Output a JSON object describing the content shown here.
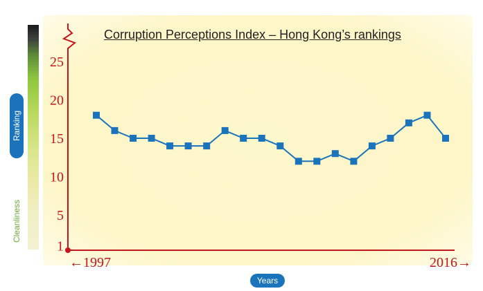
{
  "chart_data": {
    "type": "line",
    "title": "Corruption Perceptions Index – Hong Kong’s rankings",
    "xlabel": "Years",
    "ylabel": "Ranking",
    "secondary_ylabel": "Cleanliness",
    "x_start_label": "←1997",
    "x_end_label": "2016→",
    "x": [
      1997,
      1998,
      1999,
      2000,
      2001,
      2002,
      2003,
      2004,
      2005,
      2006,
      2007,
      2008,
      2009,
      2010,
      2011,
      2012,
      2013,
      2014,
      2015,
      2016
    ],
    "series": [
      {
        "values": [
          18,
          16,
          15,
          15,
          14,
          14,
          14,
          16,
          15,
          15,
          14,
          12,
          12,
          13,
          12,
          14,
          15,
          17,
          18,
          15
        ],
        "color": "#1b74bb"
      }
    ],
    "yticks": [
      "1",
      "5",
      "10",
      "15",
      "20",
      "25"
    ],
    "ylim": [
      0,
      27
    ],
    "grid": false,
    "legend": "none",
    "colors": {
      "axis": "#c4161c",
      "line": "#1b74bb",
      "marker": "#1b74bb",
      "background": "#fdf7cc",
      "badge": "#1b74bb"
    }
  }
}
